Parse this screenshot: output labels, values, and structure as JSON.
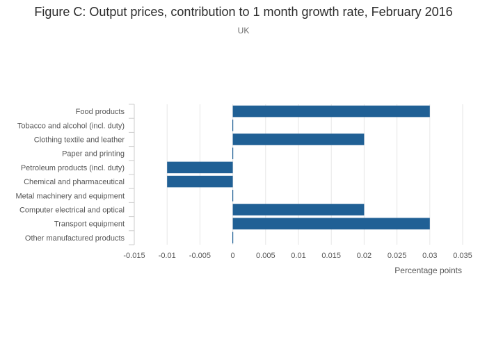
{
  "chart_data": {
    "type": "bar",
    "orientation": "horizontal",
    "title": "Figure C: Output prices, contribution to 1 month growth rate, February 2016",
    "subtitle": "UK",
    "xlabel": "Percentage points",
    "ylabel": "",
    "categories": [
      "Food products",
      "Tobacco and alcohol (incl. duty)",
      "Clothing textile and leather",
      "Paper and printing",
      "Petroleum products (incl. duty)",
      "Chemical and pharmaceutical",
      "Metal machinery and equipment",
      "Computer electrical and optical",
      "Transport equipment",
      "Other manufactured products"
    ],
    "values": [
      0.03,
      0,
      0.02,
      0,
      -0.01,
      -0.01,
      0,
      0.02,
      0.03,
      0
    ],
    "xlim": [
      -0.015,
      0.035
    ],
    "xticks": [
      "-0.015",
      "-0.01",
      "-0.005",
      "0",
      "0.005",
      "0.01",
      "0.015",
      "0.02",
      "0.025",
      "0.03",
      "0.035"
    ],
    "xtick_values": [
      -0.015,
      -0.01,
      -0.005,
      0,
      0.005,
      0.01,
      0.015,
      0.02,
      0.025,
      0.03,
      0.035
    ],
    "grid": true,
    "bar_color": "#206095",
    "grid_color": "#e6e6e6",
    "legend": "none"
  }
}
